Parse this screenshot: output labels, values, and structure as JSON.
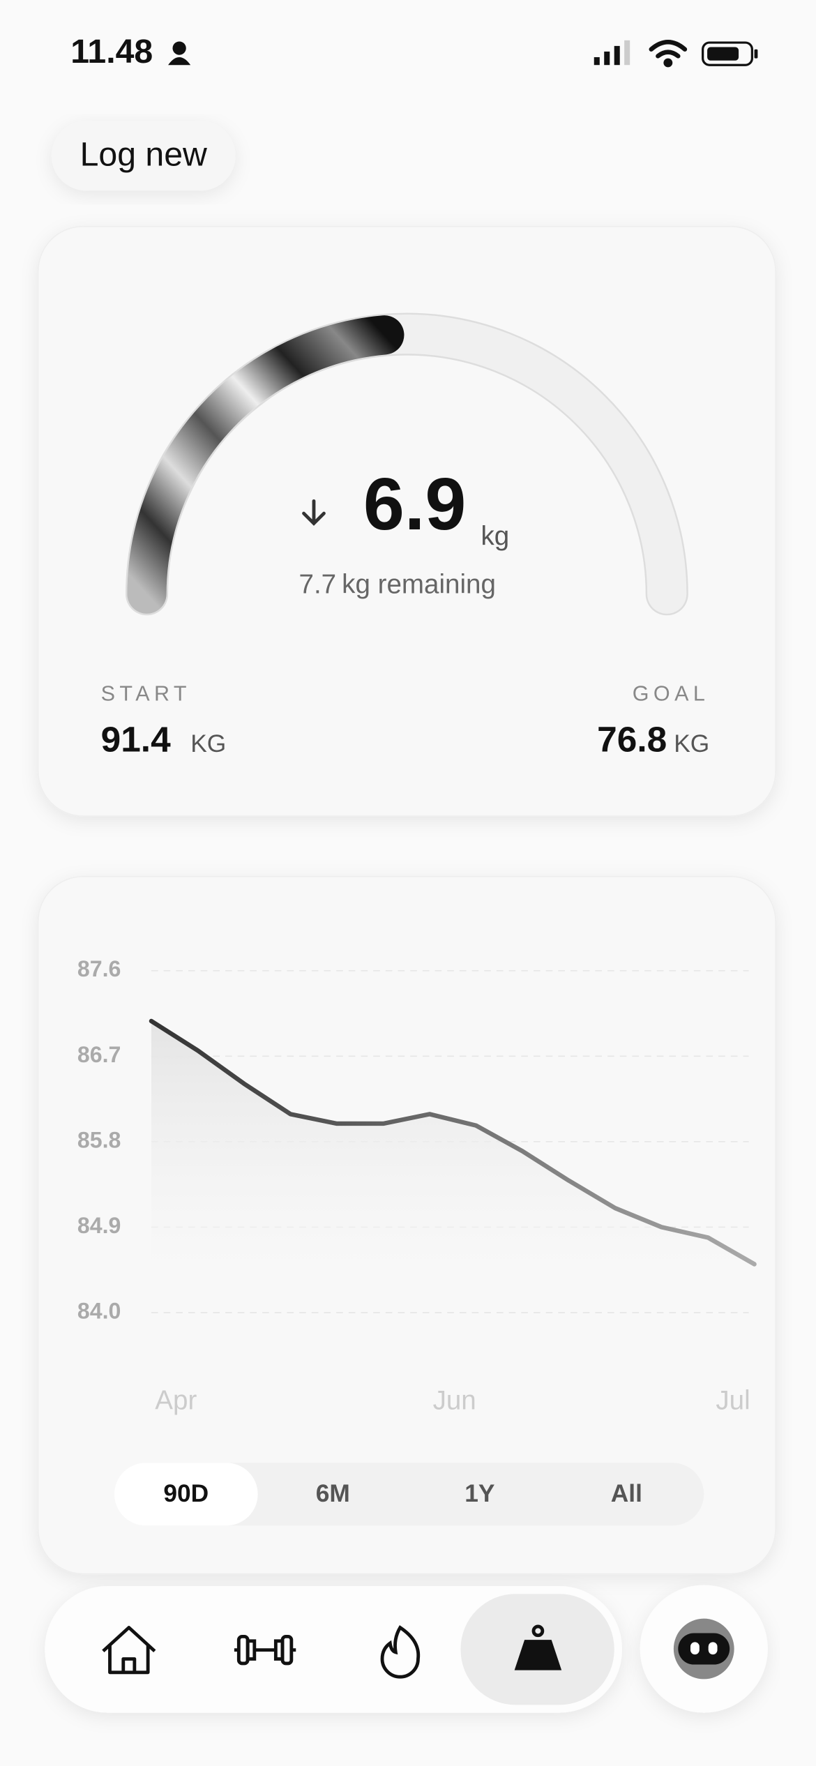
{
  "status_bar": {
    "time": "11.48"
  },
  "log_button": "Log new",
  "progress_card": {
    "lost": 6.9,
    "lost_unit": "kg",
    "remaining": 7.7,
    "remaining_text": "kg remaining",
    "start_label": "START",
    "start": 91.4,
    "start_unit": "KG",
    "goal_label": "GOAL",
    "goal": 76.8,
    "goal_unit": "KG"
  },
  "chart": {
    "type": "line",
    "values": [
      87.07,
      86.76,
      86.41,
      86.09,
      85.99,
      85.99,
      86.09,
      85.97,
      85.7,
      85.39,
      85.1,
      84.9,
      84.79,
      84.51
    ],
    "x_labels": [
      "Apr",
      "Jun",
      "Jul"
    ],
    "ylim": [
      84,
      87.6
    ],
    "yticks": [
      87.6,
      86.7,
      85.8,
      84.9,
      {
        "value": 84,
        "label": "84.0"
      }
    ],
    "grid": true
  },
  "period_tabs": {
    "options": [
      "90D",
      "6M",
      "1Y",
      "All"
    ],
    "selected": 0
  }
}
